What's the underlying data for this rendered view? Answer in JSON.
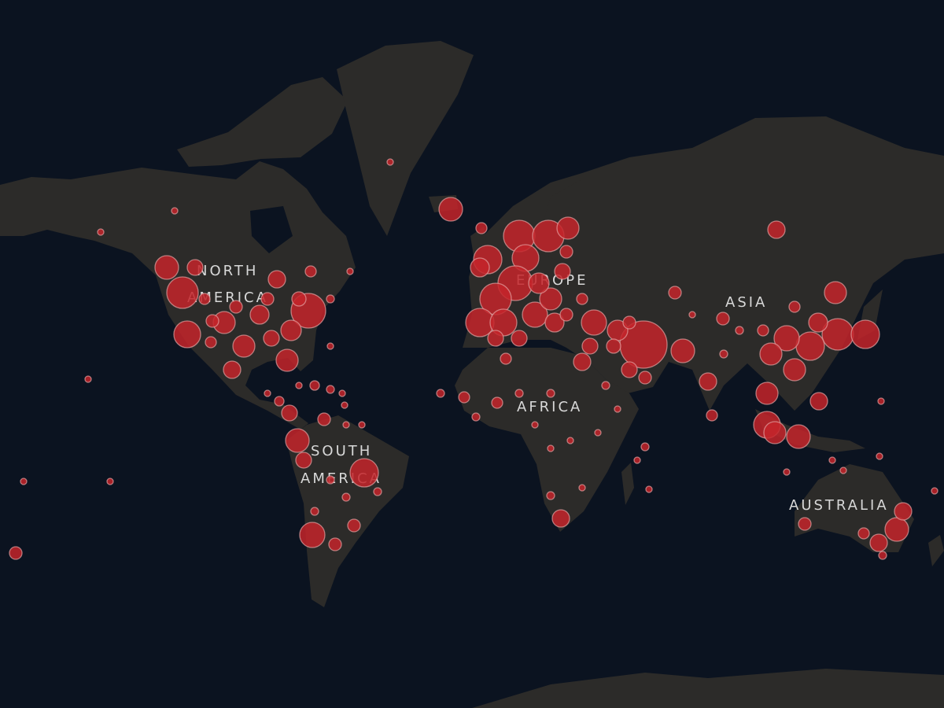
{
  "map": {
    "colors": {
      "ocean": "#0b1320",
      "land": "#2c2b29",
      "marker_fill": "#c4252a",
      "marker_stroke": "#e3a3a3",
      "label": "#d8d8d8"
    },
    "labels": {
      "north_america_1": "NORTH",
      "north_america_2": "AMERICA",
      "south_america_1": "SOUTH",
      "south_america_2": "AMERICA",
      "europe": "EUROPE",
      "africa": "AFRICA",
      "asia": "ASIA",
      "australia": "AUSTRALIA"
    },
    "marker_magnitudes": [
      225,
      400,
      100,
      289,
      196,
      196,
      121,
      484,
      169,
      196,
      144,
      100,
      64,
      64,
      49,
      49,
      25,
      16,
      16,
      16,
      121,
      16,
      16,
      16,
      64,
      16,
      49,
      81,
      64,
      16,
      36,
      100,
      16,
      36,
      25,
      16,
      16,
      225,
      100,
      64,
      16,
      16,
      324,
      256,
      64,
      64,
      25,
      25,
      25,
      25,
      16,
      225,
      49,
      324,
      144,
      400,
      400,
      196,
      289,
      484,
      400,
      324,
      289,
      256,
      196,
      100,
      64,
      169,
      144,
      100,
      100,
      256,
      64,
      49,
      900,
      169,
      100,
      121,
      81,
      64,
      225,
      100,
      64,
      64,
      64,
      121,
      196,
      400,
      324,
      144,
      324,
      256,
      196,
      196,
      196,
      289,
      196,
      225,
      121,
      121,
      49,
      25,
      25,
      16,
      49,
      49,
      49,
      49,
      25,
      49,
      25,
      25,
      121,
      25,
      16,
      16,
      16,
      16,
      16,
      16,
      25,
      25,
      16,
      25,
      16,
      16,
      225,
      121,
      121,
      49,
      64,
      25,
      16,
      16,
      16,
      16,
      16
    ]
  }
}
